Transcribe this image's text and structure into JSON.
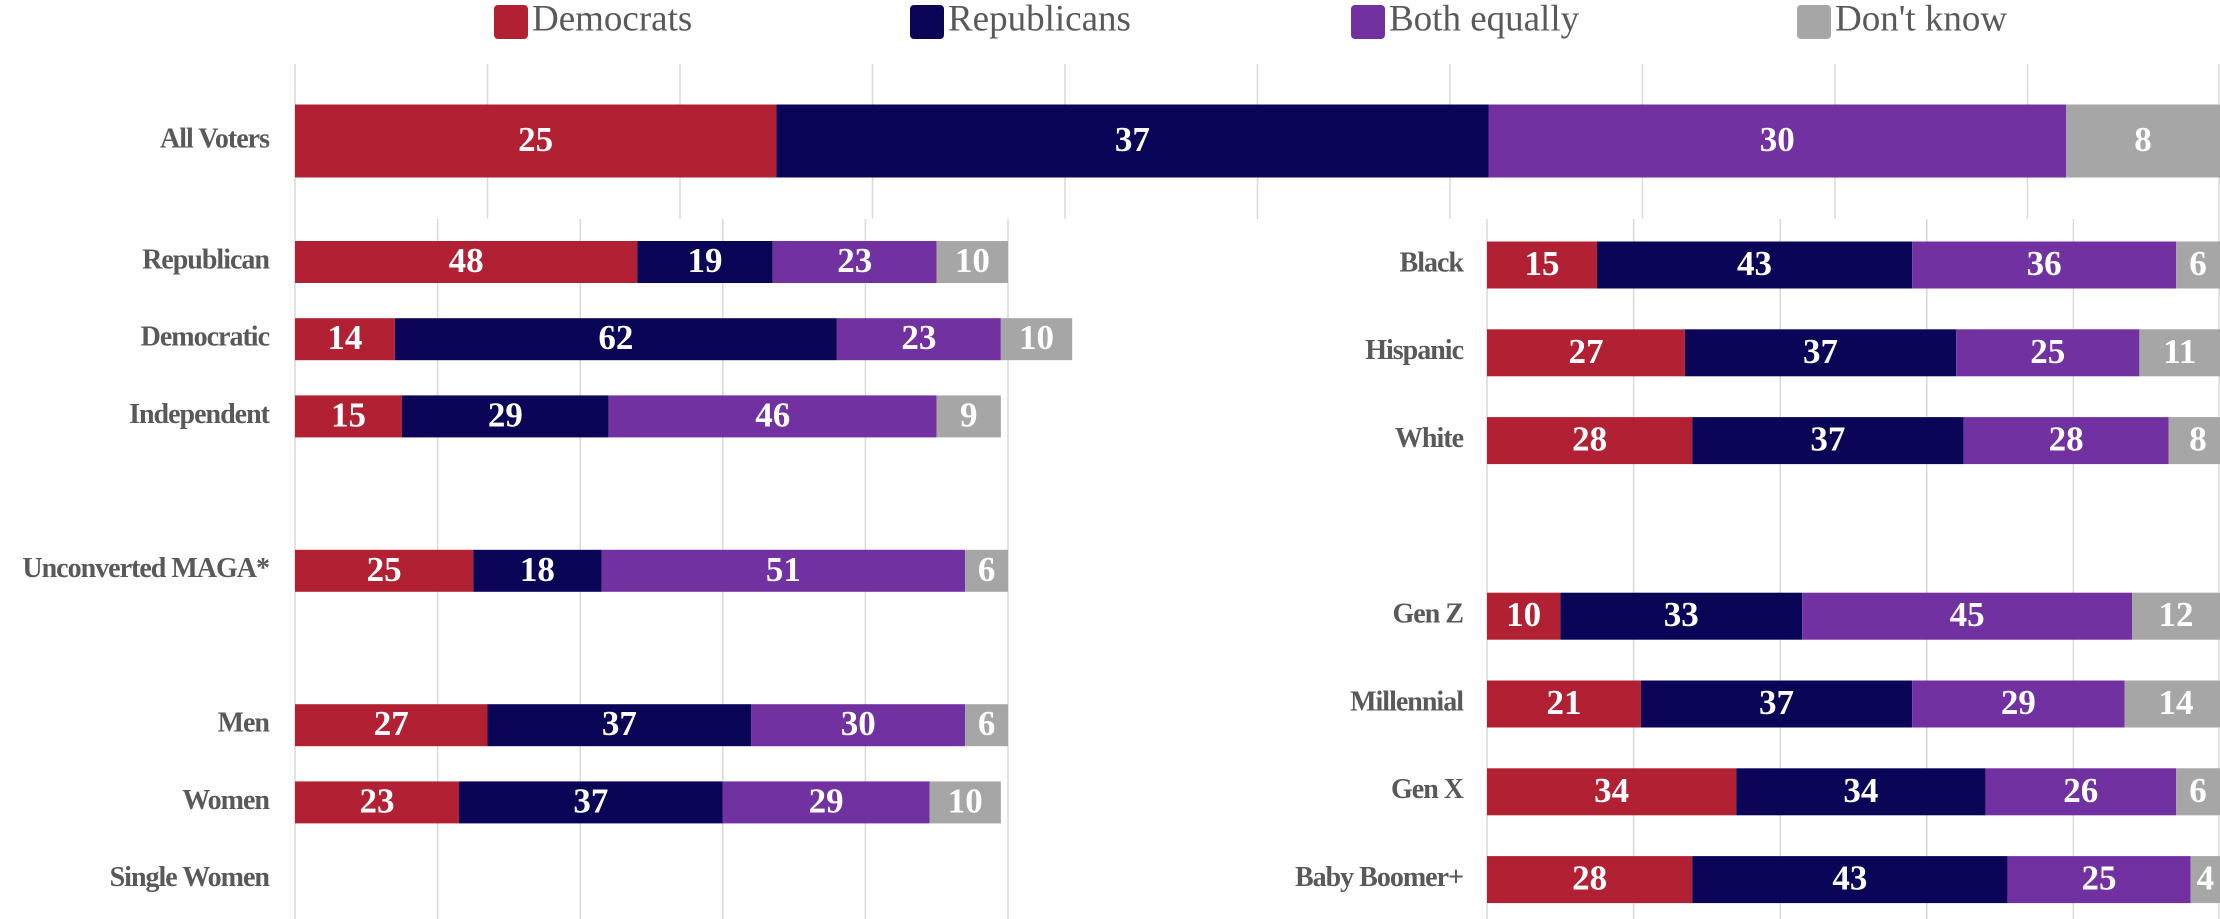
{
  "chart_data": [
    {
      "type": "bar",
      "stacked": true,
      "orientation": "horizontal",
      "legend": "top",
      "grid": true,
      "categories": [
        "All Voters"
      ],
      "series": [
        {
          "name": "Democrats",
          "color": "#b22133",
          "values": [
            25
          ]
        },
        {
          "name": "Republicans",
          "color": "#0b0557",
          "values": [
            37
          ]
        },
        {
          "name": "Both equally",
          "color": "#7131a1",
          "values": [
            30
          ]
        },
        {
          "name": "Don't know",
          "color": "#a6a6a6",
          "values": [
            8
          ]
        }
      ],
      "xlim": [
        0,
        100
      ],
      "xticks": [
        0,
        10,
        20,
        30,
        40,
        50,
        60,
        70,
        80,
        90,
        100
      ]
    },
    {
      "type": "bar",
      "stacked": true,
      "orientation": "horizontal",
      "grid": true,
      "categories": [
        "Republican",
        "Democratic",
        "Independent",
        null,
        "Unconverted MAGA*",
        null,
        "Men",
        "Women",
        "Single Women"
      ],
      "series": [
        {
          "values": [
            48,
            14,
            15,
            null,
            25,
            null,
            27,
            23,
            null
          ]
        },
        {
          "values": [
            19,
            62,
            29,
            null,
            18,
            null,
            37,
            37,
            null
          ]
        },
        {
          "values": [
            23,
            23,
            46,
            null,
            51,
            null,
            30,
            29,
            null
          ]
        },
        {
          "values": [
            10,
            10,
            9,
            null,
            6,
            null,
            6,
            10,
            null
          ]
        }
      ],
      "xlim": [
        0,
        100
      ],
      "xticks": [
        0,
        20,
        40,
        60,
        80,
        100
      ]
    },
    {
      "type": "bar",
      "stacked": true,
      "orientation": "horizontal",
      "grid": true,
      "categories": [
        "Black",
        "Hispanic",
        "White",
        null,
        "Gen Z",
        "Millennial",
        "Gen X",
        "Baby Boomer+"
      ],
      "series": [
        {
          "values": [
            15,
            27,
            28,
            null,
            10,
            21,
            34,
            28
          ]
        },
        {
          "values": [
            43,
            37,
            37,
            null,
            33,
            37,
            34,
            43
          ]
        },
        {
          "values": [
            36,
            25,
            28,
            null,
            45,
            29,
            26,
            25
          ]
        },
        {
          "values": [
            6,
            11,
            8,
            null,
            12,
            14,
            6,
            4
          ]
        }
      ],
      "xlim": [
        0,
        100
      ],
      "xticks": [
        0,
        20,
        40,
        60,
        80,
        100
      ]
    }
  ]
}
